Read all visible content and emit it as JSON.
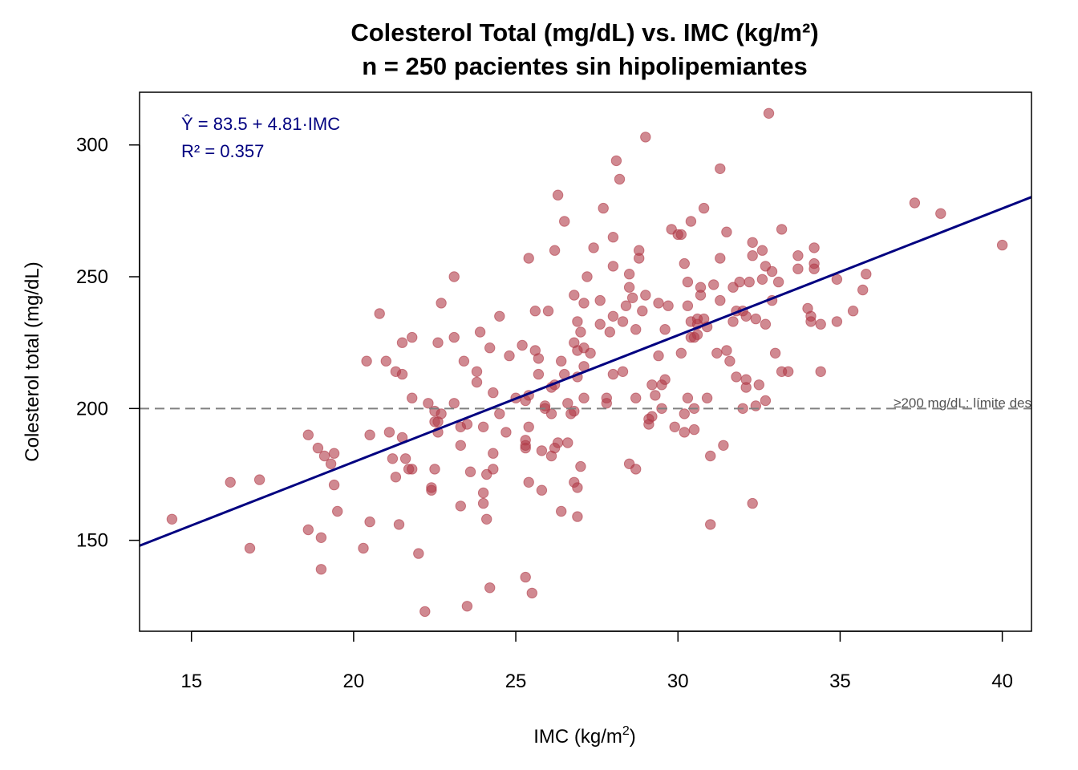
{
  "chart_data": {
    "type": "scatter",
    "title": "Colesterol Total (mg/dL) vs. IMC (kg/m²)",
    "subtitle": "n = 250 pacientes sin hipolipemiantes",
    "xlabel": "IMC (kg/m",
    "xlabel_sup": "2",
    "xlabel_suffix": ")",
    "ylabel": "Colesterol total (mg/dL)",
    "xlim": [
      13.4,
      40.9
    ],
    "ylim": [
      115.5,
      320
    ],
    "x_ticks": [
      15,
      20,
      25,
      30,
      35,
      40
    ],
    "y_ticks": [
      150,
      200,
      250,
      300
    ],
    "grid": false,
    "regression": {
      "intercept": 83.5,
      "slope": 4.81,
      "r2": 0.357
    },
    "annotation_lines": [
      "Ŷ = 83.5 + 4.81·IMC",
      "R² = 0.357"
    ],
    "reference_line": {
      "y": 200,
      "label": "≥200 mg/dL: límite des"
    },
    "colors": {
      "points": "#b03a48",
      "regression_line": "#000080",
      "annotation": "#000080",
      "reference_line": "#808080"
    },
    "points": [
      [
        14.4,
        158
      ],
      [
        16.2,
        172
      ],
      [
        16.8,
        147
      ],
      [
        17.1,
        173
      ],
      [
        18.6,
        190
      ],
      [
        18.6,
        154
      ],
      [
        18.9,
        185
      ],
      [
        19.0,
        151
      ],
      [
        19.0,
        139
      ],
      [
        19.1,
        182
      ],
      [
        19.3,
        179
      ],
      [
        19.4,
        171
      ],
      [
        19.4,
        183
      ],
      [
        19.5,
        161
      ],
      [
        20.3,
        147
      ],
      [
        20.4,
        218
      ],
      [
        20.5,
        190
      ],
      [
        20.5,
        157
      ],
      [
        20.8,
        236
      ],
      [
        21.0,
        218
      ],
      [
        21.1,
        191
      ],
      [
        21.2,
        181
      ],
      [
        21.3,
        174
      ],
      [
        21.3,
        214
      ],
      [
        21.4,
        156
      ],
      [
        21.5,
        225
      ],
      [
        21.5,
        213
      ],
      [
        21.5,
        189
      ],
      [
        21.6,
        181
      ],
      [
        21.7,
        177
      ],
      [
        21.8,
        177
      ],
      [
        21.8,
        204
      ],
      [
        21.8,
        227
      ],
      [
        22.0,
        145
      ],
      [
        22.2,
        123
      ],
      [
        22.3,
        202
      ],
      [
        22.4,
        169
      ],
      [
        22.4,
        170
      ],
      [
        22.5,
        177
      ],
      [
        22.5,
        199
      ],
      [
        22.5,
        195
      ],
      [
        22.6,
        225
      ],
      [
        22.6,
        191
      ],
      [
        22.6,
        195
      ],
      [
        22.7,
        198
      ],
      [
        22.7,
        240
      ],
      [
        23.1,
        250
      ],
      [
        23.1,
        227
      ],
      [
        23.1,
        202
      ],
      [
        23.3,
        163
      ],
      [
        23.3,
        186
      ],
      [
        23.3,
        193
      ],
      [
        23.4,
        218
      ],
      [
        23.5,
        125
      ],
      [
        23.5,
        194
      ],
      [
        23.6,
        176
      ],
      [
        23.8,
        214
      ],
      [
        23.8,
        210
      ],
      [
        23.9,
        229
      ],
      [
        24.0,
        168
      ],
      [
        24.0,
        164
      ],
      [
        24.0,
        193
      ],
      [
        24.1,
        158
      ],
      [
        24.1,
        175
      ],
      [
        24.2,
        132
      ],
      [
        24.2,
        223
      ],
      [
        24.3,
        206
      ],
      [
        24.3,
        177
      ],
      [
        24.3,
        183
      ],
      [
        24.5,
        235
      ],
      [
        24.5,
        198
      ],
      [
        24.7,
        191
      ],
      [
        24.8,
        220
      ],
      [
        25.0,
        204
      ],
      [
        25.2,
        224
      ],
      [
        25.3,
        136
      ],
      [
        25.3,
        188
      ],
      [
        25.3,
        185
      ],
      [
        25.3,
        186
      ],
      [
        25.3,
        203
      ],
      [
        25.4,
        205
      ],
      [
        25.4,
        193
      ],
      [
        25.4,
        172
      ],
      [
        25.4,
        257
      ],
      [
        25.5,
        130
      ],
      [
        25.6,
        237
      ],
      [
        25.6,
        222
      ],
      [
        25.7,
        213
      ],
      [
        25.7,
        219
      ],
      [
        25.8,
        184
      ],
      [
        25.8,
        169
      ],
      [
        25.9,
        201
      ],
      [
        25.9,
        200
      ],
      [
        26.0,
        237
      ],
      [
        26.1,
        208
      ],
      [
        26.1,
        198
      ],
      [
        26.1,
        182
      ],
      [
        26.2,
        209
      ],
      [
        26.2,
        260
      ],
      [
        26.2,
        185
      ],
      [
        26.3,
        281
      ],
      [
        26.3,
        187
      ],
      [
        26.4,
        218
      ],
      [
        26.4,
        161
      ],
      [
        26.5,
        271
      ],
      [
        26.5,
        213
      ],
      [
        26.6,
        187
      ],
      [
        26.6,
        202
      ],
      [
        26.7,
        198
      ],
      [
        26.8,
        199
      ],
      [
        26.8,
        172
      ],
      [
        26.8,
        243
      ],
      [
        26.8,
        225
      ],
      [
        26.9,
        222
      ],
      [
        26.9,
        233
      ],
      [
        26.9,
        212
      ],
      [
        26.9,
        159
      ],
      [
        26.9,
        170
      ],
      [
        27.0,
        229
      ],
      [
        27.0,
        178
      ],
      [
        27.1,
        240
      ],
      [
        27.1,
        223
      ],
      [
        27.1,
        216
      ],
      [
        27.1,
        204
      ],
      [
        27.2,
        250
      ],
      [
        27.3,
        221
      ],
      [
        27.4,
        261
      ],
      [
        27.6,
        241
      ],
      [
        27.6,
        232
      ],
      [
        27.7,
        276
      ],
      [
        27.8,
        204
      ],
      [
        27.8,
        202
      ],
      [
        27.9,
        229
      ],
      [
        28.0,
        254
      ],
      [
        28.0,
        235
      ],
      [
        28.0,
        265
      ],
      [
        28.0,
        213
      ],
      [
        28.1,
        294
      ],
      [
        28.2,
        287
      ],
      [
        28.3,
        233
      ],
      [
        28.3,
        214
      ],
      [
        28.4,
        239
      ],
      [
        28.5,
        179
      ],
      [
        28.5,
        251
      ],
      [
        28.5,
        246
      ],
      [
        28.6,
        242
      ],
      [
        28.7,
        204
      ],
      [
        28.7,
        177
      ],
      [
        28.7,
        230
      ],
      [
        28.8,
        260
      ],
      [
        28.8,
        257
      ],
      [
        28.9,
        237
      ],
      [
        29.0,
        243
      ],
      [
        29.0,
        303
      ],
      [
        29.1,
        196
      ],
      [
        29.1,
        194
      ],
      [
        29.2,
        209
      ],
      [
        29.2,
        197
      ],
      [
        29.3,
        205
      ],
      [
        29.4,
        240
      ],
      [
        29.4,
        220
      ],
      [
        29.5,
        200
      ],
      [
        29.5,
        209
      ],
      [
        29.6,
        230
      ],
      [
        29.6,
        211
      ],
      [
        29.7,
        239
      ],
      [
        29.8,
        268
      ],
      [
        29.9,
        193
      ],
      [
        30.0,
        266
      ],
      [
        30.1,
        266
      ],
      [
        30.1,
        221
      ],
      [
        30.2,
        191
      ],
      [
        30.2,
        198
      ],
      [
        30.2,
        255
      ],
      [
        30.3,
        248
      ],
      [
        30.3,
        239
      ],
      [
        30.3,
        204
      ],
      [
        30.4,
        271
      ],
      [
        30.4,
        233
      ],
      [
        30.4,
        227
      ],
      [
        30.5,
        227
      ],
      [
        30.5,
        200
      ],
      [
        30.5,
        192
      ],
      [
        30.6,
        234
      ],
      [
        30.6,
        232
      ],
      [
        30.6,
        228
      ],
      [
        30.7,
        243
      ],
      [
        30.7,
        246
      ],
      [
        30.8,
        276
      ],
      [
        30.8,
        234
      ],
      [
        30.9,
        204
      ],
      [
        30.9,
        231
      ],
      [
        31.0,
        182
      ],
      [
        31.0,
        156
      ],
      [
        31.1,
        247
      ],
      [
        31.2,
        221
      ],
      [
        31.3,
        291
      ],
      [
        31.3,
        257
      ],
      [
        31.3,
        241
      ],
      [
        31.4,
        186
      ],
      [
        31.5,
        222
      ],
      [
        31.5,
        267
      ],
      [
        31.6,
        218
      ],
      [
        31.7,
        246
      ],
      [
        31.7,
        233
      ],
      [
        31.8,
        237
      ],
      [
        31.8,
        212
      ],
      [
        31.9,
        248
      ],
      [
        32.0,
        200
      ],
      [
        32.0,
        237
      ],
      [
        32.1,
        235
      ],
      [
        32.1,
        211
      ],
      [
        32.1,
        208
      ],
      [
        32.2,
        248
      ],
      [
        32.3,
        164
      ],
      [
        32.3,
        263
      ],
      [
        32.3,
        258
      ],
      [
        32.4,
        234
      ],
      [
        32.4,
        201
      ],
      [
        32.5,
        209
      ],
      [
        32.6,
        260
      ],
      [
        32.6,
        249
      ],
      [
        32.7,
        254
      ],
      [
        32.7,
        232
      ],
      [
        32.7,
        203
      ],
      [
        32.8,
        312
      ],
      [
        32.9,
        252
      ],
      [
        32.9,
        241
      ],
      [
        33.0,
        221
      ],
      [
        33.1,
        248
      ],
      [
        33.2,
        268
      ],
      [
        33.2,
        214
      ],
      [
        33.4,
        214
      ],
      [
        33.7,
        253
      ],
      [
        33.7,
        258
      ],
      [
        34.0,
        238
      ],
      [
        34.1,
        235
      ],
      [
        34.1,
        233
      ],
      [
        34.2,
        261
      ],
      [
        34.2,
        255
      ],
      [
        34.2,
        253
      ],
      [
        34.4,
        232
      ],
      [
        34.4,
        214
      ],
      [
        34.9,
        249
      ],
      [
        34.9,
        233
      ],
      [
        35.4,
        237
      ],
      [
        35.7,
        245
      ],
      [
        35.8,
        251
      ],
      [
        37.3,
        278
      ],
      [
        38.1,
        274
      ],
      [
        40.0,
        262
      ]
    ]
  }
}
